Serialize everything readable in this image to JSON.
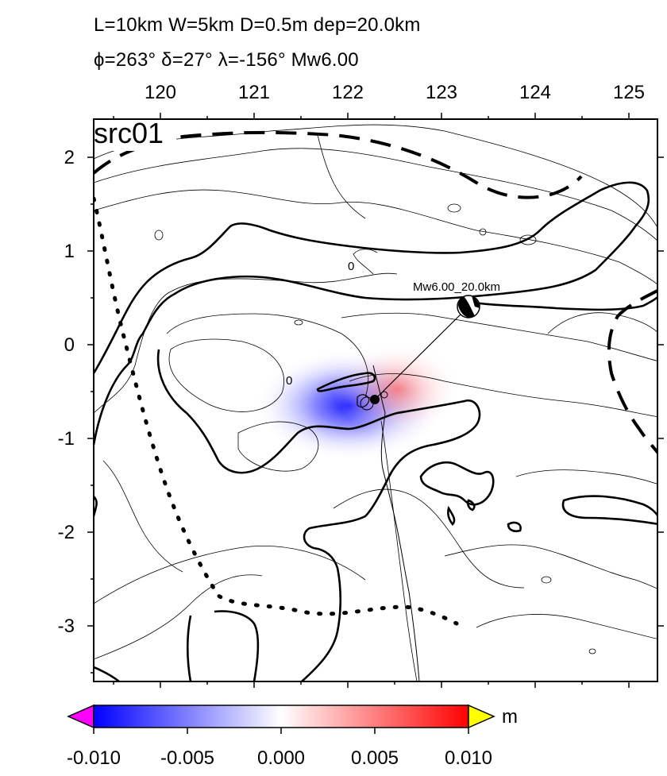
{
  "header": {
    "line1": "L=10km W=5km D=0.5m dep=20.0km",
    "line2": "ϕ=263° δ=27° λ=-156° Mw6.00"
  },
  "map": {
    "panel_label": "src01",
    "x_ticks": [
      "120",
      "121",
      "122",
      "123",
      "124",
      "125"
    ],
    "y_ticks": [
      "2",
      "1",
      "0",
      "-1",
      "-2",
      "-3"
    ],
    "contour_labels": [
      "0",
      "0"
    ],
    "beachball_label": "Mw6.00_20.0km",
    "colors": {
      "negative": "#0000ff",
      "positive": "#ff0000",
      "neutral": "#ffffff",
      "below_range": "#ff00ff",
      "above_range": "#ffff00"
    }
  },
  "colorbar": {
    "unit": "m",
    "ticks": [
      "-0.010",
      "-0.005",
      "0.000",
      "0.005",
      "0.010"
    ]
  }
}
